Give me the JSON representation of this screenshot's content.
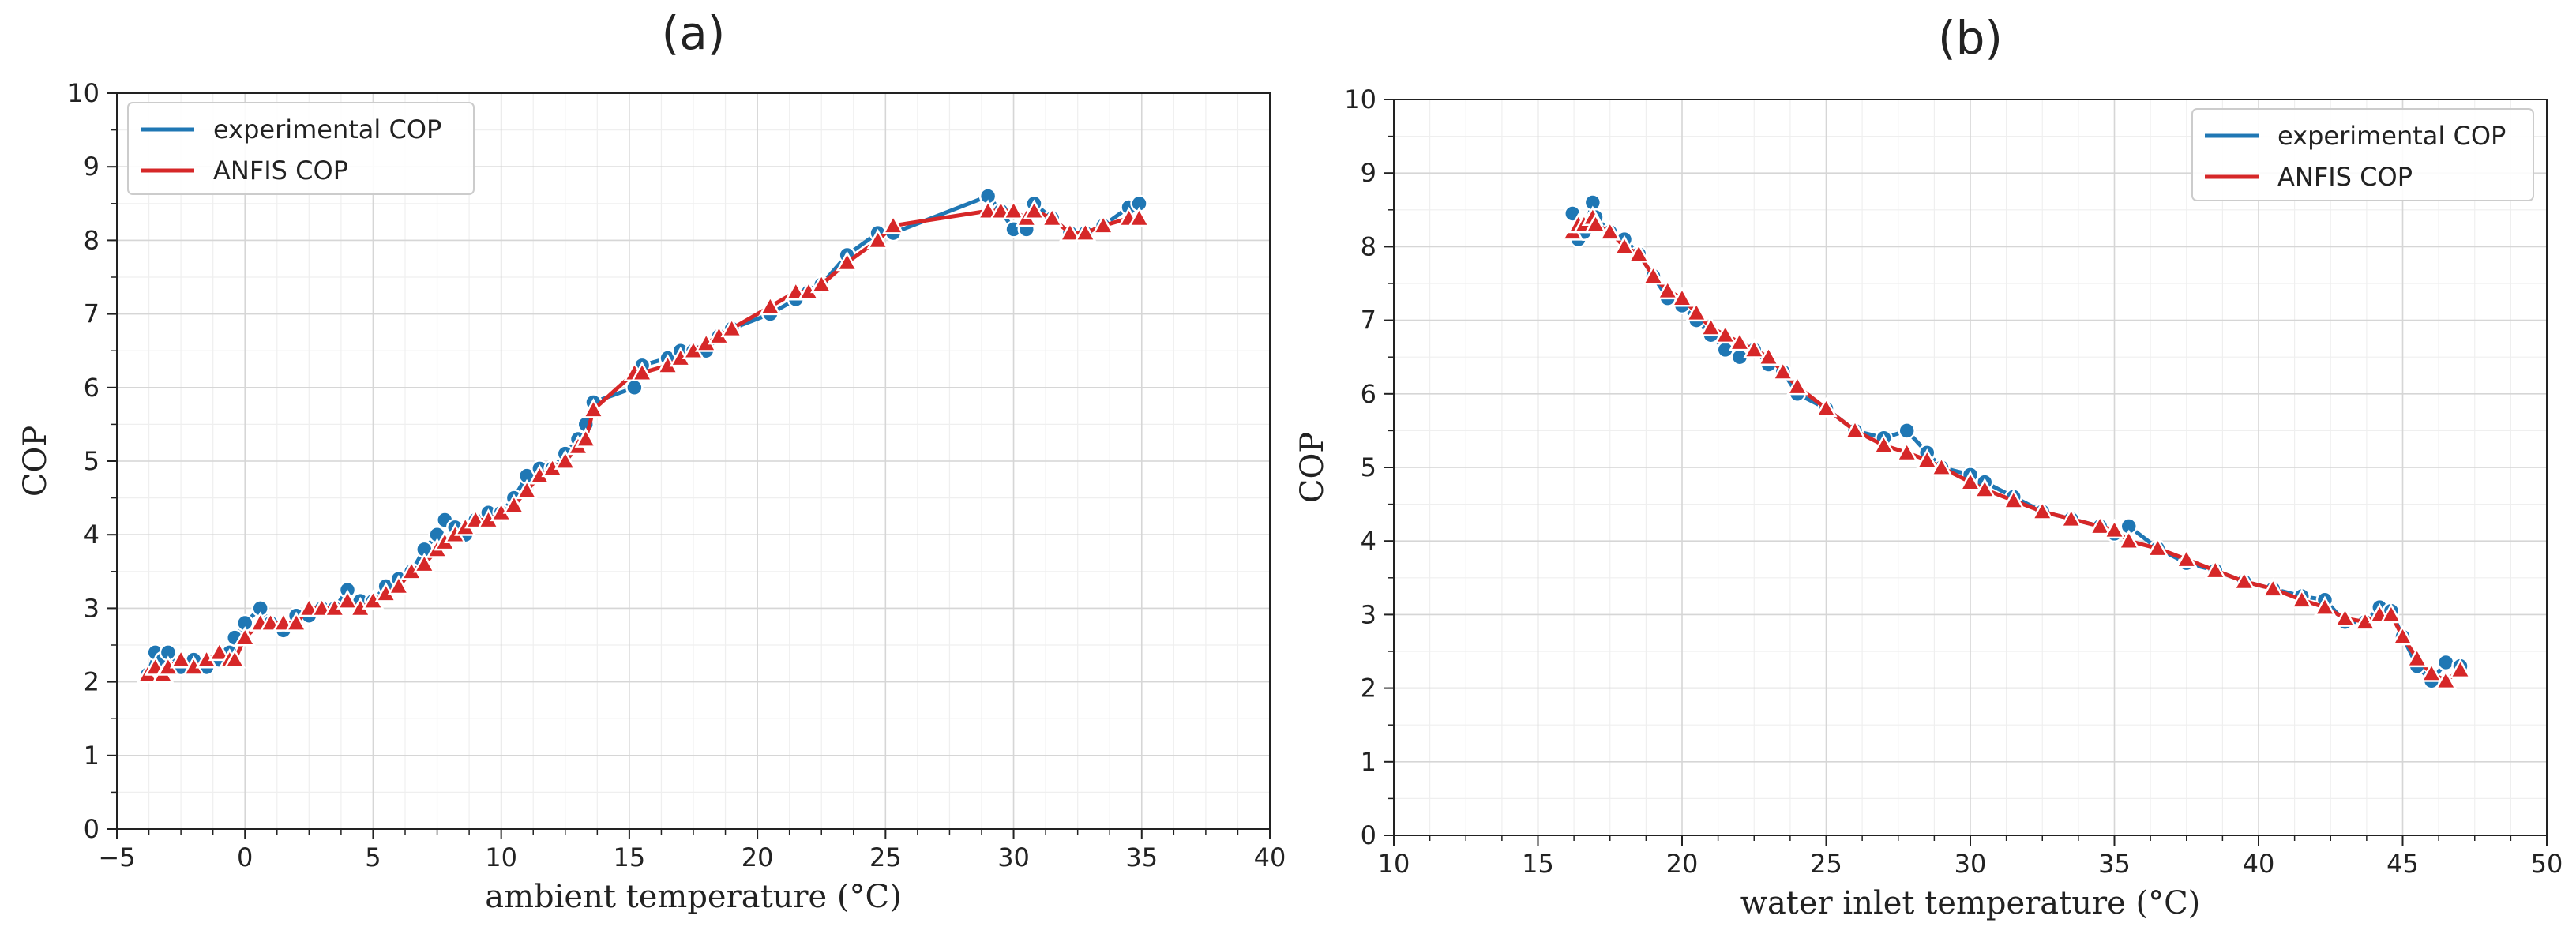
{
  "chart_data": [
    {
      "panel": "a",
      "type": "line",
      "title": "(a)",
      "xlabel": "ambient temperature (°C)",
      "ylabel": "COP",
      "xlim": [
        -5,
        40
      ],
      "ylim": [
        0,
        10
      ],
      "xticks": [
        -5,
        0,
        5,
        10,
        15,
        20,
        25,
        30,
        35,
        40
      ],
      "yticks": [
        0,
        1,
        2,
        3,
        4,
        5,
        6,
        7,
        8,
        9,
        10
      ],
      "grid": true,
      "legend_position": "top-left",
      "series": [
        {
          "name": "experimental COP",
          "color": "#1f77b4",
          "marker": "circle",
          "x": [
            -3.8,
            -3.5,
            -3.2,
            -3.0,
            -2.5,
            -2.0,
            -1.5,
            -1.0,
            -0.6,
            -0.4,
            0.0,
            0.6,
            1.0,
            1.5,
            2.0,
            2.5,
            3.0,
            3.5,
            4.0,
            4.5,
            5.0,
            5.5,
            6.0,
            6.5,
            7.0,
            7.5,
            7.8,
            8.2,
            8.6,
            9.0,
            9.5,
            10.0,
            10.5,
            11.0,
            11.5,
            12.0,
            12.5,
            13.0,
            13.3,
            13.6,
            15.2,
            15.5,
            16.5,
            17.0,
            17.5,
            18.0,
            18.5,
            19.0,
            20.5,
            21.5,
            22.0,
            22.5,
            23.5,
            24.7,
            25.3,
            29.0,
            29.5,
            30.0,
            30.5,
            30.8,
            31.5,
            32.2,
            32.8,
            33.5,
            34.5,
            34.9
          ],
          "y": [
            2.1,
            2.4,
            2.3,
            2.4,
            2.2,
            2.3,
            2.2,
            2.3,
            2.4,
            2.6,
            2.8,
            3.0,
            2.8,
            2.7,
            2.9,
            2.9,
            3.0,
            3.0,
            3.25,
            3.1,
            3.1,
            3.3,
            3.4,
            3.5,
            3.8,
            4.0,
            4.2,
            4.1,
            4.0,
            4.2,
            4.3,
            4.3,
            4.5,
            4.8,
            4.9,
            4.9,
            5.1,
            5.3,
            5.5,
            5.8,
            6.0,
            6.3,
            6.4,
            6.5,
            6.5,
            6.5,
            6.7,
            6.8,
            7.0,
            7.2,
            7.3,
            7.4,
            7.8,
            8.1,
            8.1,
            8.6,
            8.4,
            8.15,
            8.15,
            8.5,
            8.3,
            8.1,
            8.1,
            8.2,
            8.45,
            8.5
          ]
        },
        {
          "name": "ANFIS COP",
          "color": "#d62728",
          "marker": "triangle",
          "x": [
            -3.8,
            -3.5,
            -3.2,
            -3.0,
            -2.5,
            -2.0,
            -1.5,
            -1.0,
            -0.6,
            -0.4,
            0.0,
            0.6,
            1.0,
            1.5,
            2.0,
            2.5,
            3.0,
            3.5,
            4.0,
            4.5,
            5.0,
            5.5,
            6.0,
            6.5,
            7.0,
            7.5,
            7.8,
            8.2,
            8.6,
            9.0,
            9.5,
            10.0,
            10.5,
            11.0,
            11.5,
            12.0,
            12.5,
            13.0,
            13.3,
            13.6,
            15.2,
            15.5,
            16.5,
            17.0,
            17.5,
            18.0,
            18.5,
            19.0,
            20.5,
            21.5,
            22.0,
            22.5,
            23.5,
            24.7,
            25.3,
            29.0,
            29.5,
            30.0,
            30.5,
            30.8,
            31.5,
            32.2,
            32.8,
            33.5,
            34.5,
            34.9
          ],
          "y": [
            2.1,
            2.2,
            2.1,
            2.2,
            2.3,
            2.2,
            2.3,
            2.4,
            2.3,
            2.3,
            2.6,
            2.8,
            2.8,
            2.8,
            2.8,
            3.0,
            3.0,
            3.0,
            3.1,
            3.0,
            3.1,
            3.2,
            3.3,
            3.5,
            3.6,
            3.8,
            3.9,
            4.0,
            4.1,
            4.2,
            4.2,
            4.3,
            4.4,
            4.6,
            4.8,
            4.9,
            5.0,
            5.2,
            5.3,
            5.7,
            6.2,
            6.2,
            6.3,
            6.4,
            6.5,
            6.6,
            6.7,
            6.8,
            7.1,
            7.3,
            7.3,
            7.4,
            7.7,
            8.0,
            8.2,
            8.4,
            8.4,
            8.4,
            8.3,
            8.4,
            8.3,
            8.1,
            8.1,
            8.2,
            8.3,
            8.3
          ]
        }
      ]
    },
    {
      "panel": "b",
      "type": "line",
      "title": "(b)",
      "xlabel": "water inlet temperature (°C)",
      "ylabel": "COP",
      "xlim": [
        10,
        50
      ],
      "ylim": [
        0,
        10
      ],
      "xticks": [
        10,
        15,
        20,
        25,
        30,
        35,
        40,
        45,
        50
      ],
      "yticks": [
        0,
        1,
        2,
        3,
        4,
        5,
        6,
        7,
        8,
        9,
        10
      ],
      "grid": true,
      "legend_position": "top-right",
      "series": [
        {
          "name": "experimental COP",
          "color": "#1f77b4",
          "marker": "circle",
          "x": [
            16.2,
            16.4,
            16.6,
            16.9,
            17.0,
            17.5,
            18.0,
            18.5,
            19.0,
            19.5,
            20.0,
            20.5,
            21.0,
            21.5,
            22.0,
            22.5,
            23.0,
            23.5,
            24.0,
            25.0,
            26.0,
            27.0,
            27.8,
            28.5,
            29.0,
            30.0,
            30.5,
            31.5,
            32.5,
            33.5,
            34.5,
            35.0,
            35.5,
            36.5,
            37.5,
            38.5,
            39.5,
            40.5,
            41.5,
            42.3,
            43.0,
            43.7,
            44.2,
            44.6,
            45.0,
            45.5,
            46.0,
            46.5,
            47.0
          ],
          "y": [
            8.45,
            8.1,
            8.2,
            8.6,
            8.4,
            8.2,
            8.1,
            7.9,
            7.6,
            7.3,
            7.2,
            7.0,
            6.8,
            6.6,
            6.5,
            6.6,
            6.4,
            6.3,
            6.0,
            5.8,
            5.5,
            5.4,
            5.5,
            5.2,
            5.0,
            4.9,
            4.8,
            4.6,
            4.4,
            4.3,
            4.2,
            4.1,
            4.2,
            3.9,
            3.7,
            3.6,
            3.45,
            3.35,
            3.25,
            3.2,
            2.9,
            2.9,
            3.1,
            3.05,
            2.7,
            2.3,
            2.1,
            2.35,
            2.3
          ]
        },
        {
          "name": "ANFIS COP",
          "color": "#d62728",
          "marker": "triangle",
          "x": [
            16.2,
            16.4,
            16.6,
            16.9,
            17.0,
            17.5,
            18.0,
            18.5,
            19.0,
            19.5,
            20.0,
            20.5,
            21.0,
            21.5,
            22.0,
            22.5,
            23.0,
            23.5,
            24.0,
            25.0,
            26.0,
            27.0,
            27.8,
            28.5,
            29.0,
            30.0,
            30.5,
            31.5,
            32.5,
            33.5,
            34.5,
            35.0,
            35.5,
            36.5,
            37.5,
            38.5,
            39.5,
            40.5,
            41.5,
            42.3,
            43.0,
            43.7,
            44.2,
            44.6,
            45.0,
            45.5,
            46.0,
            46.5,
            47.0
          ],
          "y": [
            8.2,
            8.3,
            8.3,
            8.4,
            8.3,
            8.2,
            8.0,
            7.9,
            7.6,
            7.4,
            7.3,
            7.1,
            6.9,
            6.8,
            6.7,
            6.6,
            6.5,
            6.3,
            6.1,
            5.8,
            5.5,
            5.3,
            5.2,
            5.1,
            5.0,
            4.8,
            4.7,
            4.55,
            4.4,
            4.3,
            4.2,
            4.15,
            4.0,
            3.9,
            3.75,
            3.6,
            3.45,
            3.35,
            3.2,
            3.1,
            2.95,
            2.9,
            3.0,
            3.0,
            2.7,
            2.4,
            2.2,
            2.1,
            2.25
          ]
        }
      ]
    }
  ]
}
